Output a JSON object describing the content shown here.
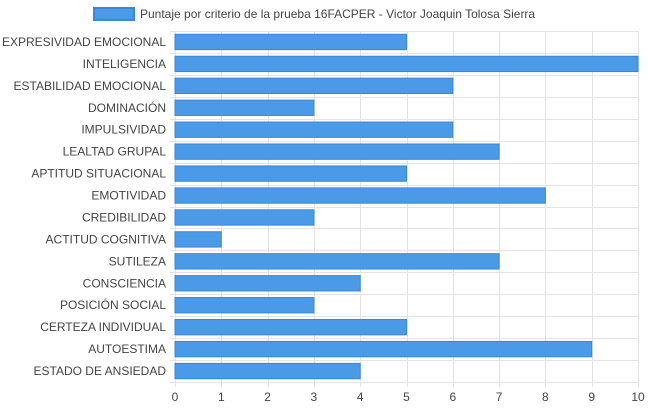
{
  "chart_data": {
    "type": "bar",
    "orientation": "horizontal",
    "legend_position": "top",
    "grid": true,
    "xlim": [
      0,
      10
    ],
    "x_ticks": [
      0,
      1,
      2,
      3,
      4,
      5,
      6,
      7,
      8,
      9,
      10
    ],
    "categories": [
      "EXPRESIVIDAD EMOCIONAL",
      "INTELIGENCIA",
      "ESTABILIDAD EMOCIONAL",
      "DOMINACIÓN",
      "IMPULSIVIDAD",
      "LEALTAD GRUPAL",
      "APTITUD SITUACIONAL",
      "EMOTIVIDAD",
      "CREDIBILIDAD",
      "ACTITUD COGNITIVA",
      "SUTILEZA",
      "CONSCIENCIA",
      "POSICIÓN SOCIAL",
      "CERTEZA INDIVIDUAL",
      "AUTOESTIMA",
      "ESTADO DE ANSIEDAD"
    ],
    "series": [
      {
        "name": "Puntaje por criterio de la prueba 16FACPER - Victor Joaquin Tolosa Sierra",
        "color": "#4b9ae8",
        "border_color": "#3a87d8",
        "values": [
          5,
          10,
          6,
          3,
          6,
          7,
          5,
          8,
          3,
          1,
          7,
          4,
          3,
          5,
          9,
          4
        ]
      }
    ],
    "colors": {
      "grid": "#e3e3e3",
      "text": "#444444",
      "tick": "#999999"
    }
  }
}
